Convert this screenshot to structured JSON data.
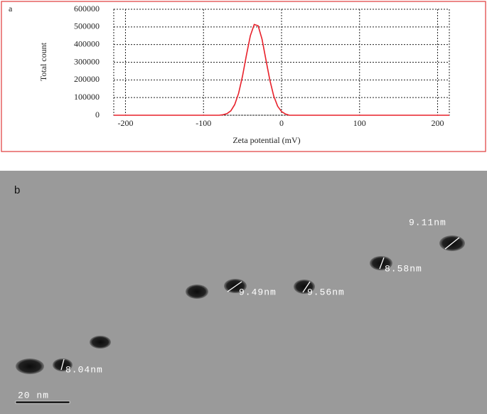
{
  "chart_data": {
    "type": "line",
    "panel_label": "a",
    "xlabel": "Zeta potential (mV)",
    "ylabel": "Total count",
    "x": [
      -215,
      -100,
      -80,
      -75,
      -70,
      -65,
      -60,
      -55,
      -50,
      -45,
      -40,
      -35,
      -30,
      -25,
      -20,
      -15,
      -10,
      -5,
      0,
      5,
      10,
      215
    ],
    "values": [
      0,
      0,
      0,
      2800,
      9000,
      25000,
      60000,
      124000,
      221000,
      340000,
      450000,
      514000,
      506000,
      430000,
      315000,
      200000,
      109000,
      51000,
      21000,
      7000,
      0,
      0
    ],
    "color": "#e8202a",
    "xlim": [
      -215,
      215
    ],
    "xticks": [
      -200,
      -100,
      0,
      100,
      200
    ],
    "ylim": [
      0,
      600000
    ],
    "yticks": [
      0,
      100000,
      200000,
      300000,
      400000,
      500000,
      600000
    ],
    "grid": true
  },
  "tem_image": {
    "panel_label": "b",
    "annotations": [
      "8.04nm",
      "9.49nm",
      "9.56nm",
      "8.58nm",
      "9.11nm"
    ],
    "scale_bar": "20 nm"
  }
}
